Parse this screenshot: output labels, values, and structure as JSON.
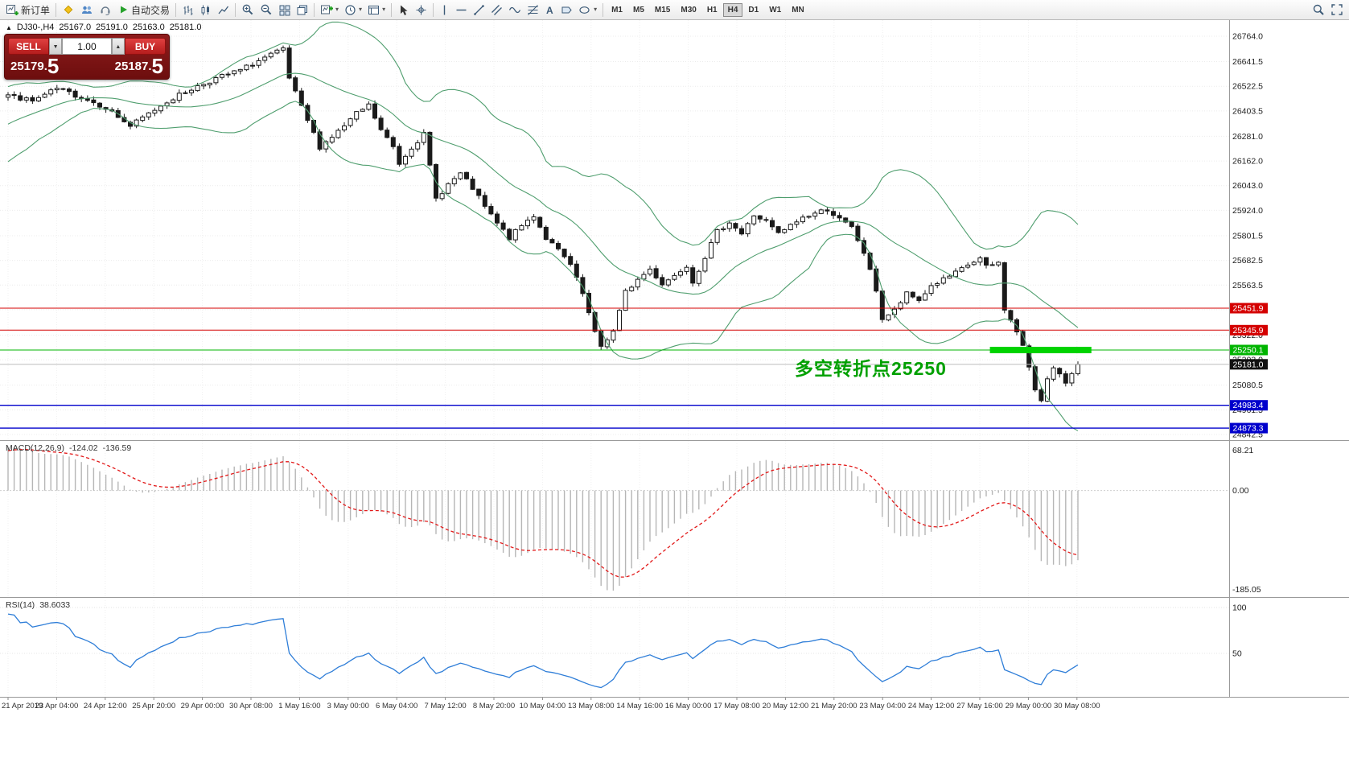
{
  "toolbar": {
    "new_order": "新订单",
    "autotrade": "自动交易",
    "timeframes": [
      "M1",
      "M5",
      "M15",
      "M30",
      "H1",
      "H4",
      "D1",
      "W1",
      "MN"
    ],
    "active_timeframe": "H4"
  },
  "symbol_info": {
    "collapse_glyph": "▲",
    "symbol": "DJ30-,H4",
    "open": "25167.0",
    "high": "25191.0",
    "low": "25163.0",
    "close": "25181.0"
  },
  "trade_panel": {
    "sell_label": "SELL",
    "buy_label": "BUY",
    "volume": "1.00",
    "spin_down": "▼",
    "spin_up": "▲",
    "sell_price_main": "25179.",
    "sell_price_big": "5",
    "buy_price_main": "25187.",
    "buy_price_big": "5"
  },
  "annotation": {
    "text": "多空转折点25250",
    "color": "#00A000"
  },
  "macd": {
    "name": "MACD(12,26,9)",
    "value_main": "-124.02",
    "value_signal": "-136.59",
    "axis_labels": [
      "68.21",
      "0.00",
      "-185.05"
    ]
  },
  "rsi": {
    "name": "RSI(14)",
    "value": "38.6033",
    "axis_labels": [
      "100",
      "50"
    ]
  },
  "chart_data": {
    "type": "candlestick",
    "symbol": "DJ30-",
    "timeframe": "H4",
    "ohlc_header": {
      "open": 25167.0,
      "high": 25191.0,
      "low": 25163.0,
      "close": 25181.0
    },
    "n_candles": 176,
    "lead_in": {
      "bars": 26,
      "from": 26080,
      "to": 26480
    },
    "price_anchors": [
      [
        0,
        26480
      ],
      [
        4,
        26450
      ],
      [
        8,
        26510
      ],
      [
        12,
        26470
      ],
      [
        16,
        26420
      ],
      [
        20,
        26330
      ],
      [
        23,
        26390
      ],
      [
        26,
        26450
      ],
      [
        30,
        26510
      ],
      [
        34,
        26560
      ],
      [
        38,
        26600
      ],
      [
        42,
        26660
      ],
      [
        45,
        26700
      ],
      [
        46,
        26560
      ],
      [
        48,
        26420
      ],
      [
        51,
        26230
      ],
      [
        53,
        26280
      ],
      [
        55,
        26330
      ],
      [
        57,
        26390
      ],
      [
        59,
        26430
      ],
      [
        61,
        26310
      ],
      [
        63,
        26230
      ],
      [
        64,
        26150
      ],
      [
        66,
        26230
      ],
      [
        68,
        26290
      ],
      [
        70,
        25980
      ],
      [
        72,
        26050
      ],
      [
        74,
        26100
      ],
      [
        76,
        26030
      ],
      [
        78,
        25940
      ],
      [
        80,
        25860
      ],
      [
        82,
        25790
      ],
      [
        84,
        25850
      ],
      [
        86,
        25900
      ],
      [
        88,
        25790
      ],
      [
        90,
        25730
      ],
      [
        92,
        25660
      ],
      [
        94,
        25520
      ],
      [
        96,
        25330
      ],
      [
        97,
        25270
      ],
      [
        99,
        25340
      ],
      [
        101,
        25530
      ],
      [
        103,
        25590
      ],
      [
        105,
        25640
      ],
      [
        107,
        25570
      ],
      [
        109,
        25610
      ],
      [
        111,
        25660
      ],
      [
        112,
        25580
      ],
      [
        114,
        25700
      ],
      [
        116,
        25820
      ],
      [
        118,
        25870
      ],
      [
        120,
        25810
      ],
      [
        122,
        25900
      ],
      [
        124,
        25870
      ],
      [
        126,
        25810
      ],
      [
        128,
        25850
      ],
      [
        130,
        25890
      ],
      [
        132,
        25910
      ],
      [
        134,
        25930
      ],
      [
        136,
        25880
      ],
      [
        138,
        25840
      ],
      [
        140,
        25720
      ],
      [
        142,
        25540
      ],
      [
        143,
        25400
      ],
      [
        145,
        25440
      ],
      [
        147,
        25520
      ],
      [
        149,
        25490
      ],
      [
        151,
        25560
      ],
      [
        153,
        25590
      ],
      [
        155,
        25620
      ],
      [
        157,
        25660
      ],
      [
        159,
        25690
      ],
      [
        160,
        25650
      ],
      [
        162,
        25670
      ],
      [
        163,
        25450
      ],
      [
        164,
        25390
      ],
      [
        165,
        25340
      ],
      [
        166,
        25270
      ],
      [
        167,
        25160
      ],
      [
        168,
        25060
      ],
      [
        169,
        25010
      ],
      [
        170,
        25120
      ],
      [
        171,
        25160
      ],
      [
        172,
        25130
      ],
      [
        173,
        25080
      ],
      [
        174,
        25140
      ],
      [
        175,
        25181
      ]
    ],
    "bollinger": {
      "period": 20,
      "deviation": 2,
      "color": "#4f9e6e"
    },
    "price_gridlines": [
      "26764.0",
      "26641.5",
      "26522.5",
      "26403.5",
      "26281.0",
      "26162.0",
      "26043.0",
      "25924.0",
      "25801.5",
      "25682.5",
      "25563.5",
      "25444.5",
      "25322.0",
      "25203.0",
      "25080.5",
      "24961.5",
      "24842.5"
    ],
    "levels": [
      {
        "label": "25451.9",
        "price": 25451.9,
        "color": "#d40000",
        "width": 1
      },
      {
        "label": "25345.9",
        "price": 25345.9,
        "color": "#d40000",
        "width": 1
      },
      {
        "label": "25250.1",
        "price": 25250.1,
        "color": "#00b400",
        "width": 1
      },
      {
        "label": "25181.0",
        "price": 25181.0,
        "color": "#111111",
        "line_color": "#bdbdbd",
        "width": 1
      },
      {
        "label": "24983.4",
        "price": 24983.4,
        "color": "#0000cc",
        "width": 1.4
      },
      {
        "label": "24873.3",
        "price": 24873.3,
        "color": "#0000cc",
        "width": 1.4
      }
    ],
    "highlight_bar": {
      "price": 25250.1,
      "x1_candle": 161,
      "x2_candle": 177.6,
      "color": "#00d300"
    },
    "time_labels": [
      "21 Apr 2019",
      "23 Apr 04:00",
      "24 Apr 12:00",
      "25 Apr 20:00",
      "29 Apr 00:00",
      "30 Apr 08:00",
      "1 May 16:00",
      "3 May 00:00",
      "6 May 04:00",
      "7 May 12:00",
      "8 May 20:00",
      "10 May 04:00",
      "13 May 08:00",
      "14 May 16:00",
      "16 May 00:00",
      "17 May 08:00",
      "20 May 12:00",
      "21 May 20:00",
      "23 May 04:00",
      "24 May 12:00",
      "27 May 16:00",
      "29 May 00:00",
      "30 May 08:00"
    ]
  }
}
